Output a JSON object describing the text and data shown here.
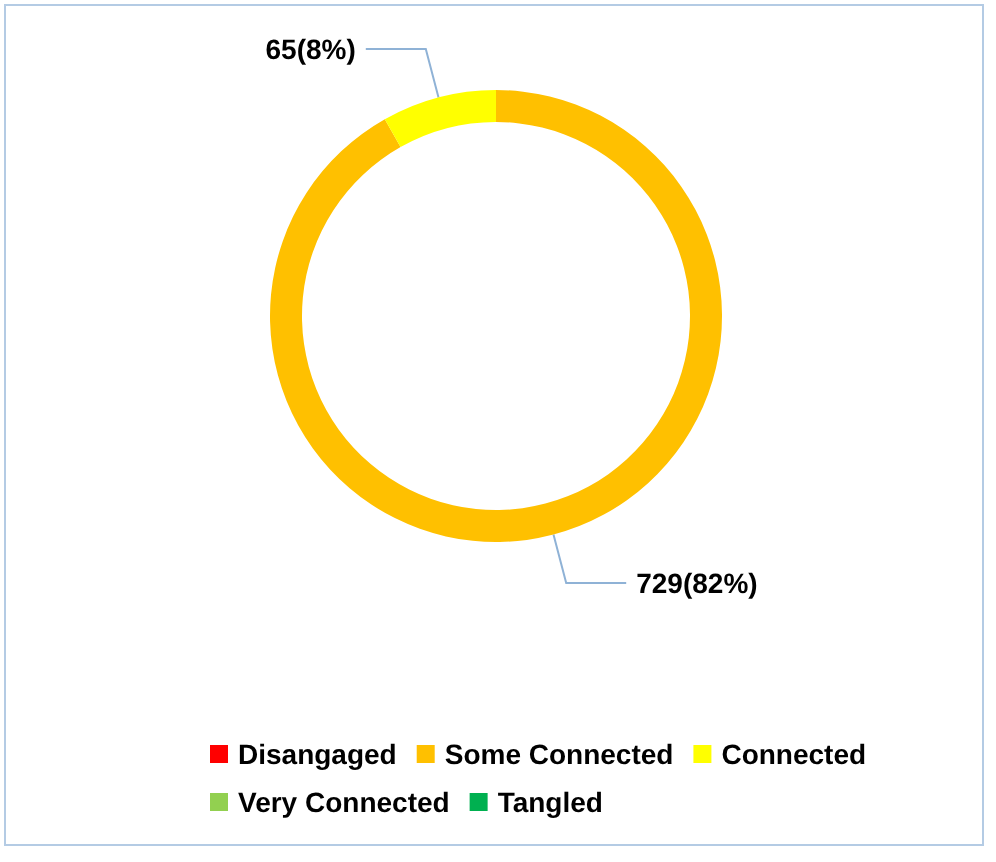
{
  "chart_data": {
    "type": "donut",
    "categories": [
      "Disangaged",
      "Some Connected",
      "Connected",
      "Very Connected",
      "Tangled"
    ],
    "values": [
      0,
      729,
      65,
      0,
      0
    ],
    "colors": [
      "#ff0000",
      "#ffc000",
      "#ffff00",
      "#92d050",
      "#00b050"
    ],
    "value_labels": [
      null,
      "729(82%)",
      "65(8%)",
      null,
      null
    ],
    "legend": "bottom"
  }
}
